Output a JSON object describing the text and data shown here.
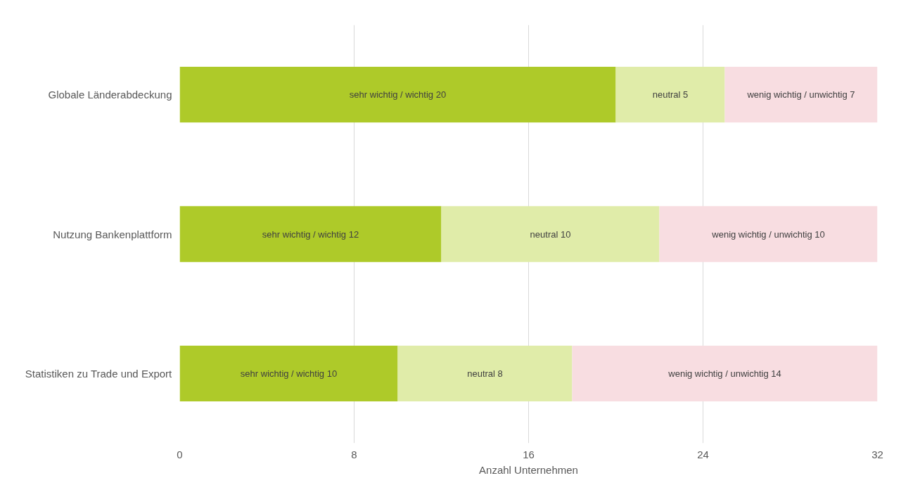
{
  "chart_data": {
    "type": "bar",
    "orientation": "horizontal",
    "stacked": true,
    "grid": "x",
    "xlabel": "Anzahl Unternehmen",
    "categories": [
      "Globale Länderabdeckung",
      "Nutzung Bankenplattform",
      "Statistiken zu Trade und Export"
    ],
    "series": [
      {
        "color": "#aeca29",
        "values": [
          20,
          12,
          10
        ],
        "value_labels": [
          "sehr wichtig / wichtig 20",
          "sehr wichtig / wichtig 12",
          "sehr wichtig / wichtig 10"
        ]
      },
      {
        "color": "#e0eca9",
        "values": [
          5,
          10,
          8
        ],
        "value_labels": [
          "neutral 5",
          "neutral 10",
          "neutral 8"
        ]
      },
      {
        "color": "#f8dde1",
        "values": [
          7,
          10,
          14
        ],
        "value_labels": [
          "wenig wichtig / unwichtig 7",
          "wenig wichtig / unwichtig 10",
          "wenig wichtig / unwichtig 14"
        ]
      }
    ],
    "xlim": [
      0,
      32
    ],
    "xticks": [
      0,
      8,
      16,
      24,
      32
    ]
  }
}
